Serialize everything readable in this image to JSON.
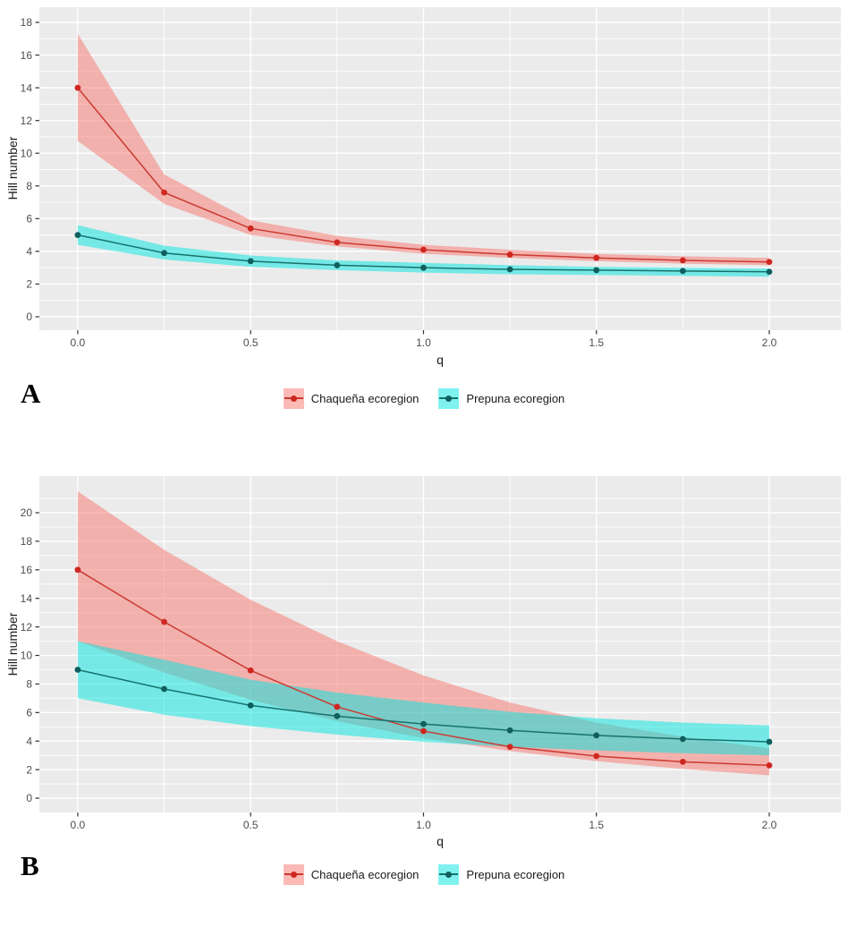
{
  "style_colors": {
    "figure_background": "#ffffff",
    "panel_background": "#ebebeb",
    "gridline": "#ffffff",
    "tick_mark": "#333333",
    "tick_text": "#4d4d4d",
    "axis_text": "#1a1a1a",
    "panel_letter": "#000000"
  },
  "chart_data": [
    {
      "type": "line",
      "panel": "A",
      "xlabel": "q",
      "ylabel": "Hill number",
      "x": [
        0,
        0.25,
        0.5,
        0.75,
        1.0,
        1.25,
        1.5,
        1.75,
        2.0
      ],
      "xlim": [
        -0.111,
        2.207
      ],
      "ylim": [
        -0.82,
        18.93
      ],
      "x_tick_values": [
        0,
        0.5,
        1.0,
        1.5,
        2.0
      ],
      "x_tick_labels": [
        "0.0",
        "0.5",
        "1.0",
        "1.5",
        "2.0"
      ],
      "x_minor_gridlines": [
        0.25,
        0.75,
        1.25,
        1.75
      ],
      "y_tick_values": [
        0,
        2,
        4,
        6,
        8,
        10,
        12,
        14,
        16,
        18
      ],
      "y_tick_labels": [
        "0",
        "2",
        "4",
        "6",
        "8",
        "10",
        "12",
        "14",
        "16",
        "18"
      ],
      "y_minor_gridlines": [
        1,
        3,
        5,
        7,
        9,
        11,
        13,
        15,
        17
      ],
      "grid": true,
      "legend_position": "bottom-center",
      "series": [
        {
          "name": "Chaqueña ecoregion",
          "line_color": "#cb3a31",
          "point_color": "#cf2720",
          "ribbon_color": "rgba(248,118,109,0.5)",
          "values": [
            14.0,
            7.6,
            5.4,
            4.55,
            4.1,
            3.8,
            3.6,
            3.45,
            3.35
          ],
          "ci_upper": [
            17.3,
            8.7,
            5.9,
            4.95,
            4.4,
            4.1,
            3.85,
            3.7,
            3.6
          ],
          "ci_lower": [
            10.75,
            6.9,
            5.0,
            4.3,
            3.85,
            3.6,
            3.4,
            3.25,
            3.15
          ]
        },
        {
          "name": "Prepuna ecoregion",
          "line_color": "#16726e",
          "point_color": "#0e5f5e",
          "ribbon_color": "rgba(0,229,224,0.5)",
          "values": [
            5.0,
            3.9,
            3.4,
            3.15,
            3.0,
            2.9,
            2.85,
            2.8,
            2.75
          ],
          "ci_upper": [
            5.6,
            4.35,
            3.75,
            3.45,
            3.3,
            3.15,
            3.05,
            3.0,
            2.95
          ],
          "ci_lower": [
            4.4,
            3.5,
            3.05,
            2.85,
            2.7,
            2.6,
            2.55,
            2.5,
            2.45
          ]
        }
      ]
    },
    {
      "type": "line",
      "panel": "B",
      "xlabel": "q",
      "ylabel": "Hill number",
      "x": [
        0,
        0.25,
        0.5,
        0.75,
        1.0,
        1.25,
        1.5,
        1.75,
        2.0
      ],
      "xlim": [
        -0.111,
        2.207
      ],
      "ylim": [
        -1.0,
        22.57
      ],
      "x_tick_values": [
        0,
        0.5,
        1.0,
        1.5,
        2.0
      ],
      "x_tick_labels": [
        "0.0",
        "0.5",
        "1.0",
        "1.5",
        "2.0"
      ],
      "x_minor_gridlines": [
        0.25,
        0.75,
        1.25,
        1.75
      ],
      "y_tick_values": [
        0,
        2,
        4,
        6,
        8,
        10,
        12,
        14,
        16,
        18,
        20
      ],
      "y_tick_labels": [
        "0",
        "2",
        "4",
        "6",
        "8",
        "10",
        "12",
        "14",
        "16",
        "18",
        "20"
      ],
      "y_minor_gridlines": [
        1,
        3,
        5,
        7,
        9,
        11,
        13,
        15,
        17,
        19,
        21
      ],
      "grid": true,
      "legend_position": "bottom-center",
      "series": [
        {
          "name": "Chaqueña ecoregion",
          "line_color": "#cb3a31",
          "point_color": "#cf2720",
          "ribbon_color": "rgba(248,118,109,0.5)",
          "values": [
            16.0,
            12.35,
            8.95,
            6.4,
            4.7,
            3.6,
            2.95,
            2.55,
            2.3
          ],
          "ci_upper": [
            21.5,
            17.4,
            13.9,
            11.0,
            8.6,
            6.7,
            5.3,
            4.3,
            3.5
          ],
          "ci_lower": [
            11.0,
            8.8,
            6.9,
            5.4,
            4.2,
            3.3,
            2.6,
            2.05,
            1.6
          ]
        },
        {
          "name": "Prepuna ecoregion",
          "line_color": "#16726e",
          "point_color": "#0e5f5e",
          "ribbon_color": "rgba(0,229,224,0.5)",
          "values": [
            9.0,
            7.65,
            6.5,
            5.75,
            5.2,
            4.75,
            4.4,
            4.15,
            3.95
          ],
          "ci_upper": [
            11.0,
            9.7,
            8.3,
            7.4,
            6.7,
            6.05,
            5.6,
            5.3,
            5.1
          ],
          "ci_lower": [
            7.0,
            5.85,
            5.05,
            4.45,
            3.95,
            3.6,
            3.35,
            3.15,
            3.0
          ]
        }
      ]
    }
  ]
}
